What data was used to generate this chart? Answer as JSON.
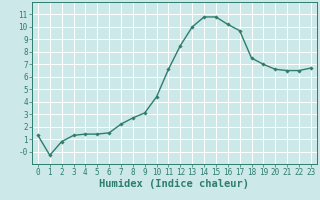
{
  "x": [
    0,
    1,
    2,
    3,
    4,
    5,
    6,
    7,
    8,
    9,
    10,
    11,
    12,
    13,
    14,
    15,
    16,
    17,
    18,
    19,
    20,
    21,
    22,
    23
  ],
  "y": [
    1.3,
    -0.3,
    0.8,
    1.3,
    1.4,
    1.4,
    1.5,
    2.2,
    2.7,
    3.1,
    4.4,
    6.6,
    8.5,
    10.0,
    10.8,
    10.8,
    10.2,
    9.7,
    7.5,
    7.0,
    6.6,
    6.5,
    6.5,
    6.7
  ],
  "line_color": "#2e7d6e",
  "marker": "D",
  "marker_size": 1.8,
  "bg_color": "#cce8e8",
  "grid_color": "#ffffff",
  "xlabel": "Humidex (Indice chaleur)",
  "xlim": [
    -0.5,
    23.5
  ],
  "ylim": [
    -1.0,
    12.0
  ],
  "yticks": [
    0,
    1,
    2,
    3,
    4,
    5,
    6,
    7,
    8,
    9,
    10,
    11
  ],
  "ytick_labels": [
    "-0",
    "1",
    "2",
    "3",
    "4",
    "5",
    "6",
    "7",
    "8",
    "9",
    "10",
    "11"
  ],
  "xticks": [
    0,
    1,
    2,
    3,
    4,
    5,
    6,
    7,
    8,
    9,
    10,
    11,
    12,
    13,
    14,
    15,
    16,
    17,
    18,
    19,
    20,
    21,
    22,
    23
  ],
  "tick_fontsize": 5.5,
  "xlabel_fontsize": 7.5,
  "line_width": 1.0
}
